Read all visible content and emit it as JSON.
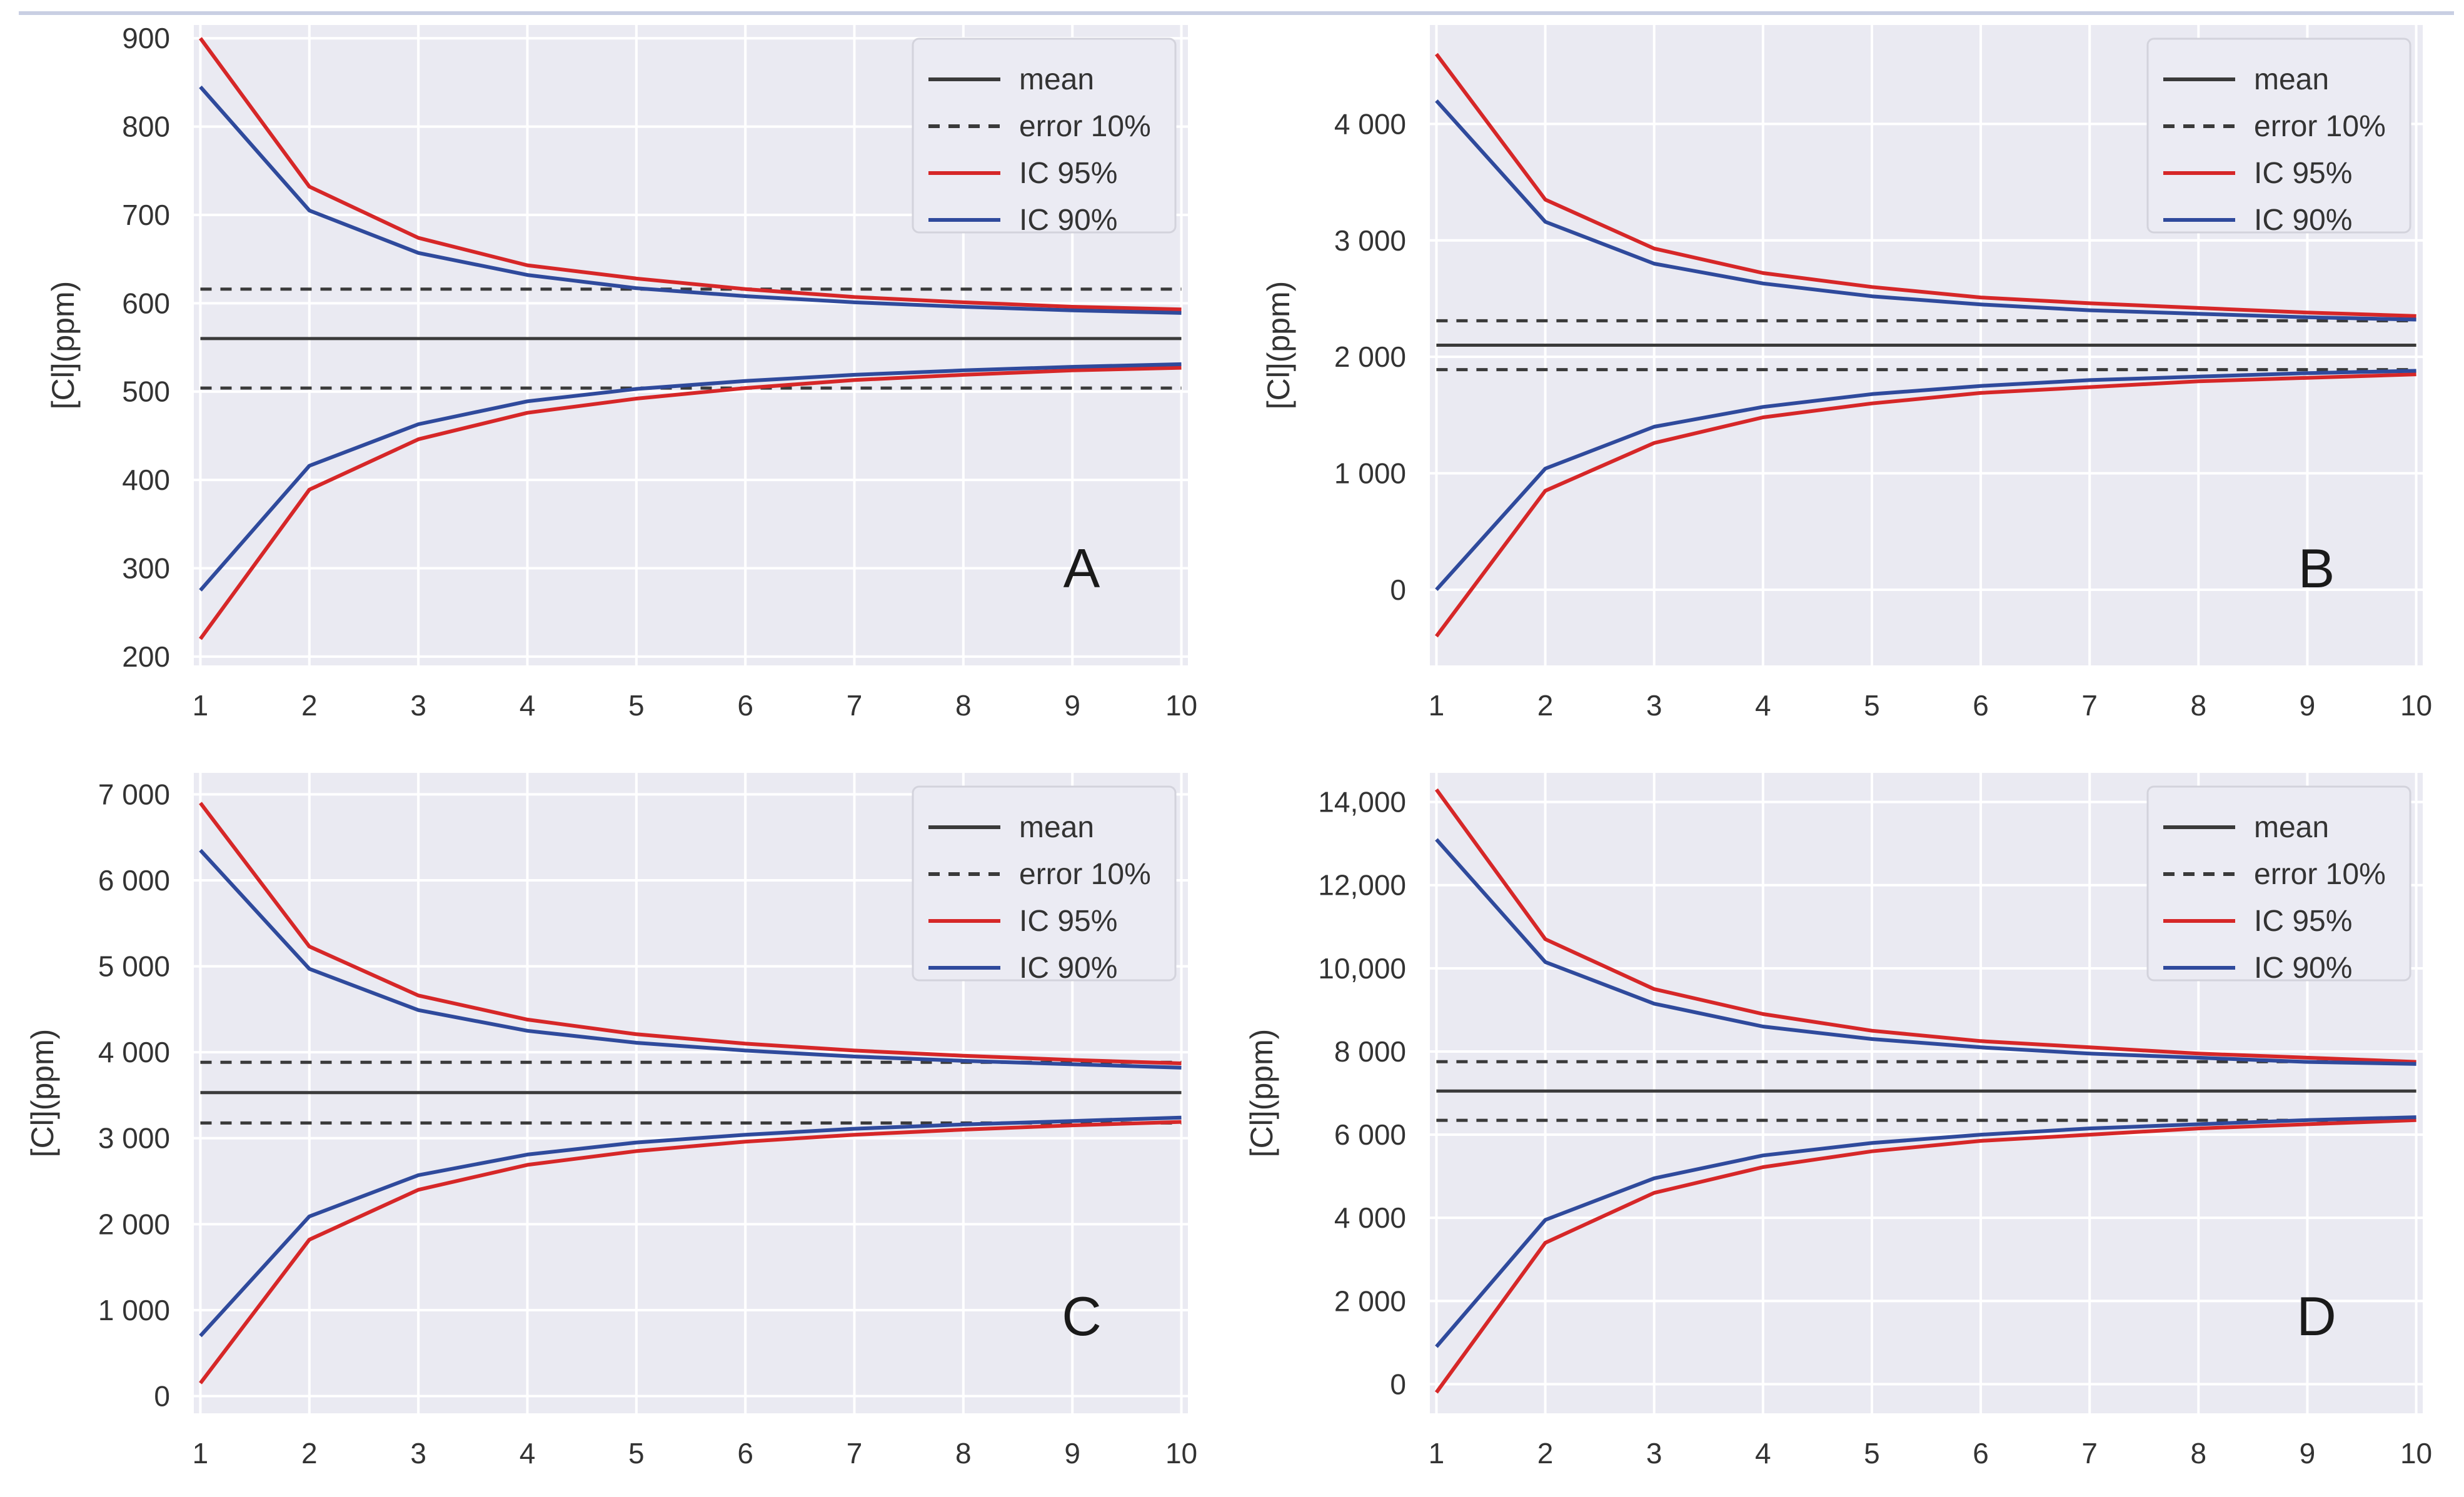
{
  "figure": {
    "x_ticks": [
      "1",
      "2",
      "3",
      "4",
      "5",
      "6",
      "7",
      "8",
      "9",
      "10"
    ],
    "legend": {
      "mean": "mean",
      "error": "error 10%",
      "ic95": "IC 95%",
      "ic90": "IC 90%"
    },
    "colors": {
      "background": "#eaeaf2",
      "grid": "#ffffff",
      "mean": "#3a3a3a",
      "error": "#3a3a3a",
      "ic95": "#d62728",
      "ic90": "#2f4a9c"
    }
  },
  "chart_data": [
    {
      "type": "line",
      "panel_label": "A",
      "ylabel": "[Cl](ppm)",
      "x": [
        1,
        2,
        3,
        4,
        5,
        6,
        7,
        8,
        9,
        10
      ],
      "ylim": [
        190,
        915
      ],
      "y_ticks": [
        200,
        300,
        400,
        500,
        600,
        700,
        800,
        900
      ],
      "y_tick_labels": [
        "200",
        "300",
        "400",
        "500",
        "600",
        "700",
        "800",
        "900"
      ],
      "legend_entries": [
        "mean",
        "error 10%",
        "IC 95%",
        "IC 90%"
      ],
      "series": [
        {
          "name": "mean",
          "style": "solid",
          "values": [
            560,
            560,
            560,
            560,
            560,
            560,
            560,
            560,
            560,
            560
          ]
        },
        {
          "name": "error 10%",
          "style": "dashed",
          "values": [
            616,
            616,
            616,
            616,
            616,
            616,
            616,
            616,
            616,
            616
          ]
        },
        {
          "name": "error 10%",
          "style": "dashed",
          "values": [
            504,
            504,
            504,
            504,
            504,
            504,
            504,
            504,
            504,
            504
          ]
        },
        {
          "name": "IC 95%",
          "style": "solid",
          "values": [
            900,
            732,
            674,
            643,
            628,
            616,
            607,
            601,
            596,
            593
          ]
        },
        {
          "name": "IC 95%",
          "style": "solid",
          "values": [
            220,
            389,
            446,
            476,
            492,
            504,
            513,
            519,
            524,
            527
          ]
        },
        {
          "name": "IC 90%",
          "style": "solid",
          "values": [
            845,
            705,
            657,
            632,
            617,
            608,
            601,
            596,
            592,
            589
          ]
        },
        {
          "name": "IC 90%",
          "style": "solid",
          "values": [
            275,
            416,
            463,
            489,
            503,
            512,
            519,
            524,
            528,
            531
          ]
        }
      ]
    },
    {
      "type": "line",
      "panel_label": "B",
      "ylabel": "[Cl](ppm)",
      "x": [
        1,
        2,
        3,
        4,
        5,
        6,
        7,
        8,
        9,
        10
      ],
      "ylim": [
        -650,
        4850
      ],
      "y_ticks": [
        0,
        1000,
        2000,
        3000,
        4000
      ],
      "y_tick_labels": [
        "0",
        "1 000",
        "2 000",
        "3 000",
        "4 000"
      ],
      "legend_entries": [
        "mean",
        "error 10%",
        "IC 95%",
        "IC 90%"
      ],
      "series": [
        {
          "name": "mean",
          "style": "solid",
          "values": [
            2100,
            2100,
            2100,
            2100,
            2100,
            2100,
            2100,
            2100,
            2100,
            2100
          ]
        },
        {
          "name": "error 10%",
          "style": "dashed",
          "values": [
            2310,
            2310,
            2310,
            2310,
            2310,
            2310,
            2310,
            2310,
            2310,
            2310
          ]
        },
        {
          "name": "error 10%",
          "style": "dashed",
          "values": [
            1890,
            1890,
            1890,
            1890,
            1890,
            1890,
            1890,
            1890,
            1890,
            1890
          ]
        },
        {
          "name": "IC 95%",
          "style": "solid",
          "values": [
            4600,
            3350,
            2930,
            2720,
            2600,
            2510,
            2460,
            2420,
            2380,
            2350
          ]
        },
        {
          "name": "IC 95%",
          "style": "solid",
          "values": [
            -400,
            850,
            1260,
            1480,
            1600,
            1690,
            1740,
            1790,
            1820,
            1850
          ]
        },
        {
          "name": "IC 90%",
          "style": "solid",
          "values": [
            4200,
            3160,
            2800,
            2630,
            2520,
            2450,
            2400,
            2370,
            2340,
            2320
          ]
        },
        {
          "name": "IC 90%",
          "style": "solid",
          "values": [
            0,
            1040,
            1400,
            1570,
            1680,
            1750,
            1800,
            1830,
            1860,
            1880
          ]
        }
      ]
    },
    {
      "type": "line",
      "panel_label": "C",
      "ylabel": "[Cl](ppm)",
      "x": [
        1,
        2,
        3,
        4,
        5,
        6,
        7,
        8,
        9,
        10
      ],
      "ylim": [
        -200,
        7250
      ],
      "y_ticks": [
        0,
        1000,
        2000,
        3000,
        4000,
        5000,
        6000,
        7000
      ],
      "y_tick_labels": [
        "0",
        "1 000",
        "2 000",
        "3 000",
        "4 000",
        "5 000",
        "6 000",
        "7 000"
      ],
      "legend_entries": [
        "mean",
        "error 10%",
        "IC 95%",
        "IC 90%"
      ],
      "series": [
        {
          "name": "mean",
          "style": "solid",
          "values": [
            3530,
            3530,
            3530,
            3530,
            3530,
            3530,
            3530,
            3530,
            3530,
            3530
          ]
        },
        {
          "name": "error 10%",
          "style": "dashed",
          "values": [
            3883,
            3883,
            3883,
            3883,
            3883,
            3883,
            3883,
            3883,
            3883,
            3883
          ]
        },
        {
          "name": "error 10%",
          "style": "dashed",
          "values": [
            3177,
            3177,
            3177,
            3177,
            3177,
            3177,
            3177,
            3177,
            3177,
            3177
          ]
        },
        {
          "name": "IC 95%",
          "style": "solid",
          "values": [
            6900,
            5230,
            4660,
            4380,
            4210,
            4100,
            4020,
            3960,
            3910,
            3870
          ]
        },
        {
          "name": "IC 95%",
          "style": "solid",
          "values": [
            150,
            1820,
            2400,
            2690,
            2850,
            2960,
            3040,
            3100,
            3150,
            3190
          ]
        },
        {
          "name": "IC 90%",
          "style": "solid",
          "values": [
            6350,
            4970,
            4490,
            4250,
            4110,
            4020,
            3950,
            3900,
            3860,
            3820
          ]
        },
        {
          "name": "IC 90%",
          "style": "solid",
          "values": [
            700,
            2090,
            2570,
            2810,
            2950,
            3040,
            3110,
            3160,
            3200,
            3240
          ]
        }
      ]
    },
    {
      "type": "line",
      "panel_label": "D",
      "ylabel": "[Cl](ppm)",
      "x": [
        1,
        2,
        3,
        4,
        5,
        6,
        7,
        8,
        9,
        10
      ],
      "ylim": [
        -700,
        14700
      ],
      "y_ticks": [
        0,
        2000,
        4000,
        6000,
        8000,
        10000,
        12000,
        14000
      ],
      "y_tick_labels": [
        "0",
        "2 000",
        "4 000",
        "6 000",
        "8 000",
        "10,000",
        "12,000",
        "14,000"
      ],
      "legend_entries": [
        "mean",
        "error 10%",
        "IC 95%",
        "IC 90%"
      ],
      "series": [
        {
          "name": "mean",
          "style": "solid",
          "values": [
            7050,
            7050,
            7050,
            7050,
            7050,
            7050,
            7050,
            7050,
            7050,
            7050
          ]
        },
        {
          "name": "error 10%",
          "style": "dashed",
          "values": [
            7755,
            7755,
            7755,
            7755,
            7755,
            7755,
            7755,
            7755,
            7755,
            7755
          ]
        },
        {
          "name": "error 10%",
          "style": "dashed",
          "values": [
            6345,
            6345,
            6345,
            6345,
            6345,
            6345,
            6345,
            6345,
            6345,
            6345
          ]
        },
        {
          "name": "IC 95%",
          "style": "solid",
          "values": [
            14300,
            10700,
            9500,
            8900,
            8500,
            8250,
            8100,
            7950,
            7850,
            7750
          ]
        },
        {
          "name": "IC 95%",
          "style": "solid",
          "values": [
            -200,
            3400,
            4600,
            5220,
            5600,
            5850,
            6000,
            6150,
            6250,
            6350
          ]
        },
        {
          "name": "IC 90%",
          "style": "solid",
          "values": [
            13100,
            10150,
            9150,
            8600,
            8300,
            8100,
            7950,
            7850,
            7750,
            7700
          ]
        },
        {
          "name": "IC 90%",
          "style": "solid",
          "values": [
            900,
            3950,
            4950,
            5500,
            5800,
            6000,
            6150,
            6250,
            6350,
            6420
          ]
        }
      ]
    }
  ]
}
